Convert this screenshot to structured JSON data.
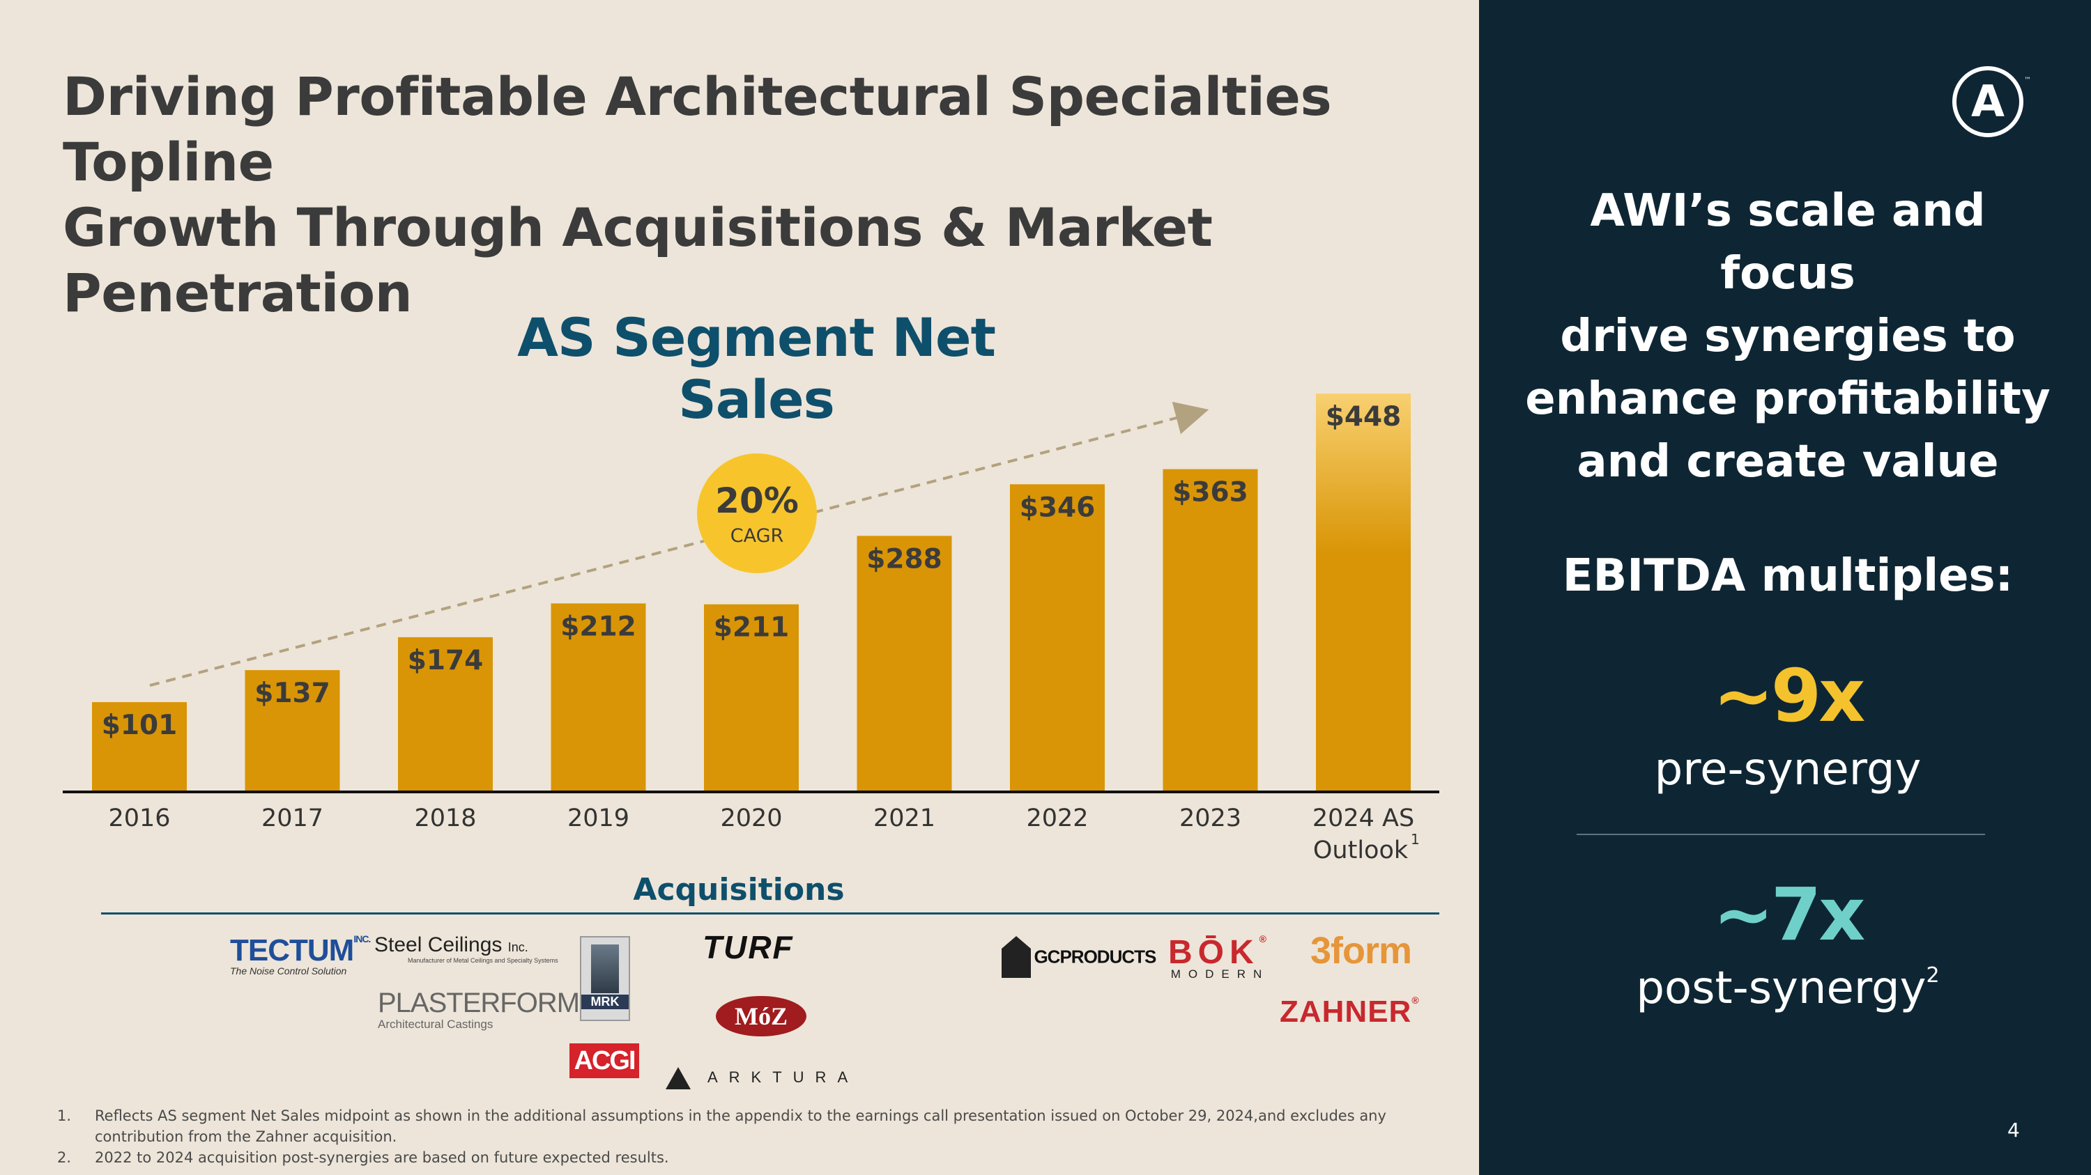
{
  "title_line1": "Driving Profitable Architectural Specialties Topline",
  "title_line2": "Growth Through Acquisitions & Market Penetration",
  "chart_data": {
    "type": "bar",
    "title": "AS Segment Net Sales",
    "categories": [
      "2016",
      "2017",
      "2018",
      "2019",
      "2020",
      "2021",
      "2022",
      "2023",
      "2024 AS Outlook"
    ],
    "category_lines": [
      [
        "2016"
      ],
      [
        "2017"
      ],
      [
        "2018"
      ],
      [
        "2019"
      ],
      [
        "2020"
      ],
      [
        "2021"
      ],
      [
        "2022"
      ],
      [
        "2023"
      ],
      [
        "2024 AS",
        "Outlook"
      ]
    ],
    "category_footnote": "1",
    "values": [
      101,
      137,
      174,
      212,
      211,
      288,
      346,
      363,
      448
    ],
    "labels": [
      "$101",
      "$137",
      "$174",
      "$212",
      "$211",
      "$288",
      "$346",
      "$363",
      "$448"
    ],
    "ylim": [
      0,
      470
    ],
    "xlabel": "",
    "ylabel": "",
    "grid": false,
    "annotation": {
      "value": "20%",
      "label": "CAGR"
    },
    "trend_arrow": {
      "from": 101,
      "to": 448
    }
  },
  "acquisitions": {
    "heading": "Acquisitions",
    "tectum": {
      "name": "TECTUM",
      "suffix": "INC.",
      "tagline": "The Noise Control Solution"
    },
    "steel": {
      "name": "Steel Ceilings",
      "suffix": "Inc.",
      "tagline": "Manufacturer of Metal Ceilings and Specialty Systems"
    },
    "plasterform": {
      "name": "PLASTERFORM",
      "tm": "™",
      "tagline": "Architectural Castings"
    },
    "mrk": {
      "name": "MRK"
    },
    "acgi": {
      "name": "ACGI"
    },
    "turf": {
      "name": "TURF"
    },
    "moz": {
      "name": "MóZ"
    },
    "arktura": {
      "name": "ARKTURA"
    },
    "gc": {
      "name": "GCPRODUCTS"
    },
    "bok": {
      "name": "BŌK",
      "reg": "®",
      "sub": "MODERN"
    },
    "form3": {
      "name": "3form"
    },
    "zahner": {
      "name": "ZAHNER",
      "reg": "®"
    }
  },
  "footnotes": [
    {
      "num": "1.",
      "text": "Reflects AS segment Net Sales midpoint as shown in the additional assumptions in the appendix to the earnings call presentation issued on October 29, 2024,and excludes any contribution from the Zahner acquisition."
    },
    {
      "num": "2.",
      "text": "2022 to 2024 acquisition post-synergies are based on future expected results."
    }
  ],
  "sidebar": {
    "logo_letter": "A",
    "logo_tm": "™",
    "headline": [
      "AWI’s scale and focus",
      "drive synergies to",
      "enhance profitability",
      "and create value"
    ],
    "ebitda_label": "EBITDA multiples:",
    "pre_multiple": "~9x",
    "pre_label": "pre-synergy",
    "post_multiple": "~7x",
    "post_label": "post-synergy",
    "post_footnote": "2"
  },
  "page_number": "4",
  "colors": {
    "background": "#ede5d9",
    "sidebar": "#0e2634",
    "bar": "#d99506",
    "bar_highlight_top": "#f8d070",
    "cagr_circle": "#f7c52b",
    "arrow": "#b3a27f",
    "accent_teal": "#6fd0c9",
    "accent_yellow": "#f3c22d",
    "heading_blue": "#0e4f6c"
  }
}
